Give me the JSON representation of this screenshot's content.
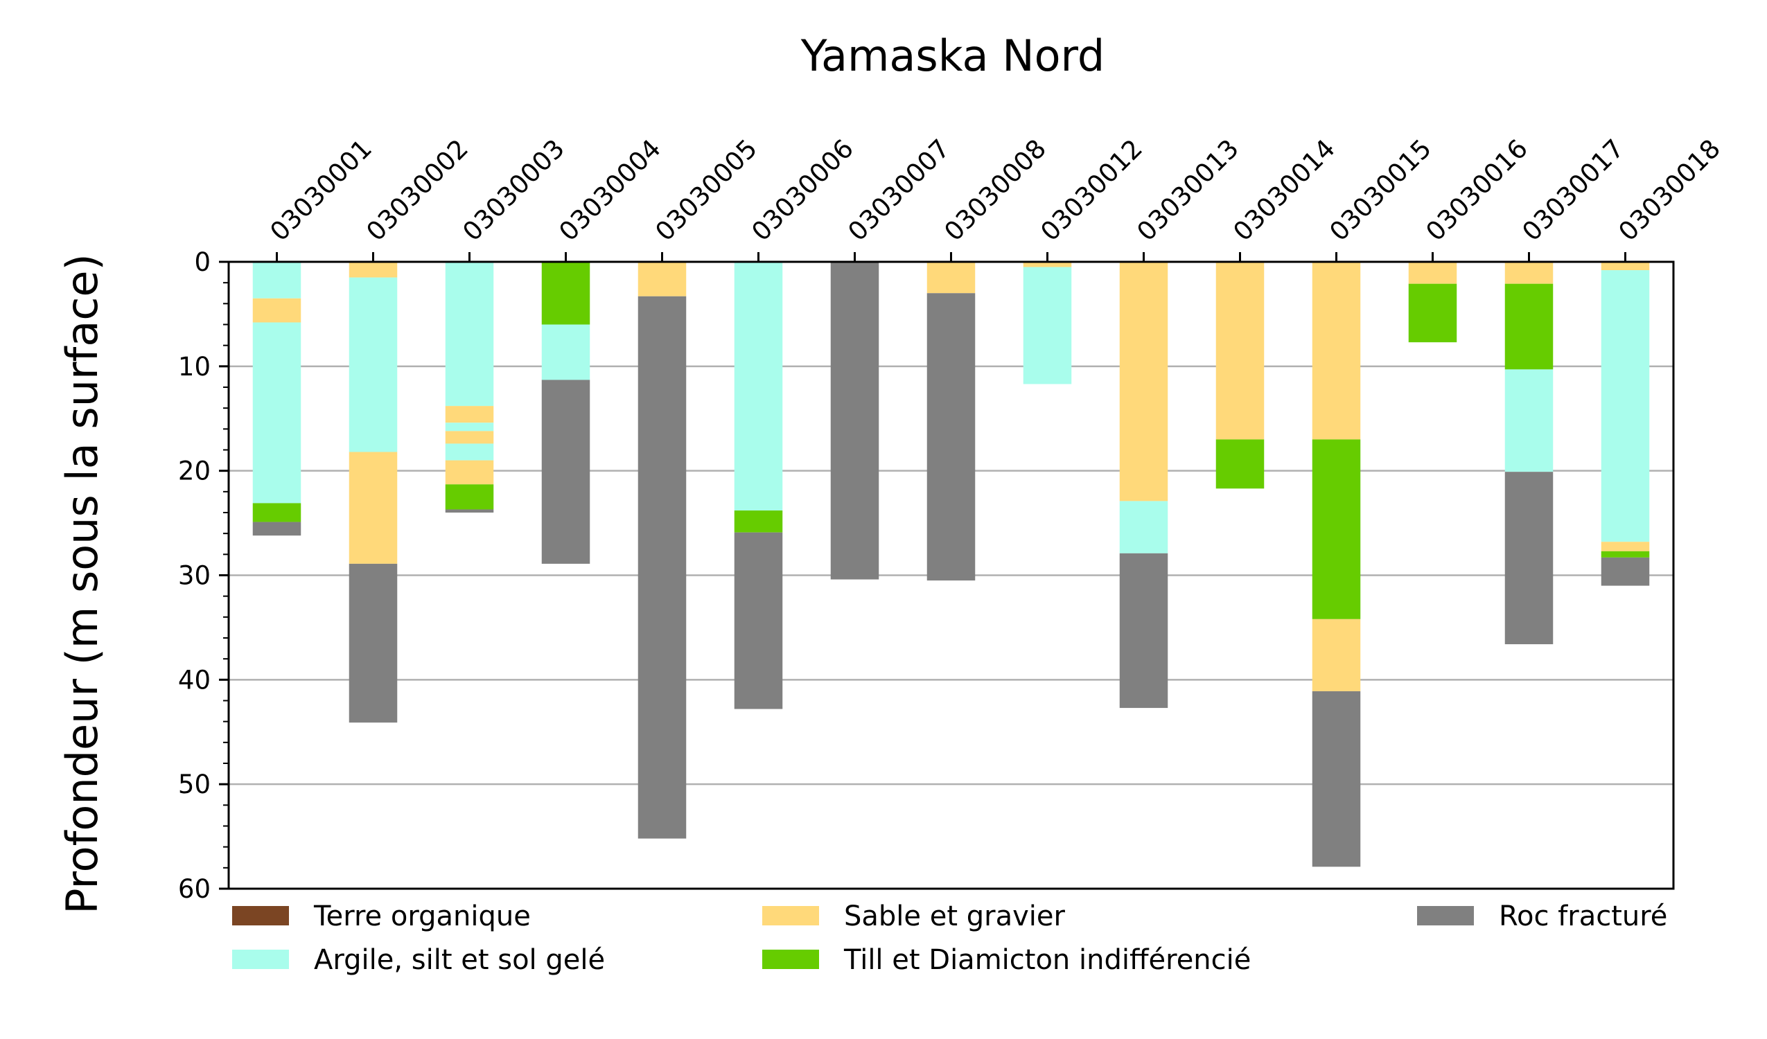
{
  "chart_data": {
    "type": "bar",
    "orientation": "vertical-stacked-depth",
    "title": "Yamaska Nord",
    "ylabel": "Profondeur (m sous la surface)",
    "xlabel": "",
    "ylim": [
      0,
      60
    ],
    "y_inverted": true,
    "yticks": [
      0,
      10,
      20,
      30,
      40,
      50,
      60
    ],
    "grid": "horizontal",
    "x_tick_position": "top",
    "legend_position": "bottom",
    "categories": [
      "03030001",
      "03030002",
      "03030003",
      "03030004",
      "03030005",
      "03030006",
      "03030007",
      "03030008",
      "03030012",
      "03030013",
      "03030014",
      "03030015",
      "03030016",
      "03030017",
      "03030018"
    ],
    "legend": [
      {
        "key": "organique",
        "label": "Terre organique",
        "color": "#7b4523"
      },
      {
        "key": "sable",
        "label": "Sable et gravier",
        "color": "#ffd97a"
      },
      {
        "key": "roc",
        "label": "Roc fracturé",
        "color": "#808080"
      },
      {
        "key": "argile",
        "label": "Argile, silt et sol gelé",
        "color": "#a9fdec"
      },
      {
        "key": "till",
        "label": "Till et Diamicton indifférencié",
        "color": "#66cc00"
      }
    ],
    "wells": [
      {
        "id": "03030001",
        "layers": [
          {
            "type": "argile",
            "top": 0,
            "bottom": 3.5
          },
          {
            "type": "sable",
            "top": 3.5,
            "bottom": 5.8
          },
          {
            "type": "argile",
            "top": 5.8,
            "bottom": 23.1
          },
          {
            "type": "till",
            "top": 23.1,
            "bottom": 24.9
          },
          {
            "type": "roc",
            "top": 24.9,
            "bottom": 26.2
          }
        ]
      },
      {
        "id": "03030002",
        "layers": [
          {
            "type": "sable",
            "top": 0,
            "bottom": 1.5
          },
          {
            "type": "argile",
            "top": 1.5,
            "bottom": 18.2
          },
          {
            "type": "sable",
            "top": 18.2,
            "bottom": 28.9
          },
          {
            "type": "roc",
            "top": 28.9,
            "bottom": 44.1
          }
        ]
      },
      {
        "id": "03030003",
        "layers": [
          {
            "type": "argile",
            "top": 0,
            "bottom": 13.8
          },
          {
            "type": "sable",
            "top": 13.8,
            "bottom": 15.4
          },
          {
            "type": "argile",
            "top": 15.4,
            "bottom": 16.2
          },
          {
            "type": "sable",
            "top": 16.2,
            "bottom": 17.4
          },
          {
            "type": "argile",
            "top": 17.4,
            "bottom": 19.0
          },
          {
            "type": "sable",
            "top": 19.0,
            "bottom": 21.3
          },
          {
            "type": "till",
            "top": 21.3,
            "bottom": 23.7
          },
          {
            "type": "roc",
            "top": 23.7,
            "bottom": 24.0
          }
        ]
      },
      {
        "id": "03030004",
        "layers": [
          {
            "type": "till",
            "top": 0,
            "bottom": 6.0
          },
          {
            "type": "argile",
            "top": 6.0,
            "bottom": 11.3
          },
          {
            "type": "roc",
            "top": 11.3,
            "bottom": 28.9
          }
        ]
      },
      {
        "id": "03030005",
        "layers": [
          {
            "type": "sable",
            "top": 0,
            "bottom": 3.3
          },
          {
            "type": "roc",
            "top": 3.3,
            "bottom": 55.2
          }
        ]
      },
      {
        "id": "03030006",
        "layers": [
          {
            "type": "argile",
            "top": 0,
            "bottom": 23.8
          },
          {
            "type": "till",
            "top": 23.8,
            "bottom": 25.9
          },
          {
            "type": "roc",
            "top": 25.9,
            "bottom": 42.8
          }
        ]
      },
      {
        "id": "03030007",
        "layers": [
          {
            "type": "roc",
            "top": 0,
            "bottom": 30.4
          }
        ]
      },
      {
        "id": "03030008",
        "layers": [
          {
            "type": "sable",
            "top": 0,
            "bottom": 3.0
          },
          {
            "type": "roc",
            "top": 3.0,
            "bottom": 30.5
          }
        ]
      },
      {
        "id": "03030012",
        "layers": [
          {
            "type": "sable",
            "top": 0,
            "bottom": 0.5
          },
          {
            "type": "argile",
            "top": 0.5,
            "bottom": 11.7
          }
        ]
      },
      {
        "id": "03030013",
        "layers": [
          {
            "type": "sable",
            "top": 0,
            "bottom": 22.9
          },
          {
            "type": "argile",
            "top": 22.9,
            "bottom": 27.9
          },
          {
            "type": "roc",
            "top": 27.9,
            "bottom": 42.7
          }
        ]
      },
      {
        "id": "03030014",
        "layers": [
          {
            "type": "sable",
            "top": 0,
            "bottom": 17.0
          },
          {
            "type": "till",
            "top": 17.0,
            "bottom": 21.7
          }
        ]
      },
      {
        "id": "03030015",
        "layers": [
          {
            "type": "sable",
            "top": 0,
            "bottom": 17.0
          },
          {
            "type": "till",
            "top": 17.0,
            "bottom": 34.2
          },
          {
            "type": "sable",
            "top": 34.2,
            "bottom": 41.1
          },
          {
            "type": "roc",
            "top": 41.1,
            "bottom": 57.9
          }
        ]
      },
      {
        "id": "03030016",
        "layers": [
          {
            "type": "sable",
            "top": 0,
            "bottom": 2.1
          },
          {
            "type": "till",
            "top": 2.1,
            "bottom": 7.7
          }
        ]
      },
      {
        "id": "03030017",
        "layers": [
          {
            "type": "sable",
            "top": 0,
            "bottom": 2.1
          },
          {
            "type": "till",
            "top": 2.1,
            "bottom": 10.3
          },
          {
            "type": "argile",
            "top": 10.3,
            "bottom": 20.1
          },
          {
            "type": "roc",
            "top": 20.1,
            "bottom": 36.6
          }
        ]
      },
      {
        "id": "03030018",
        "layers": [
          {
            "type": "sable",
            "top": 0,
            "bottom": 0.8
          },
          {
            "type": "argile",
            "top": 0.8,
            "bottom": 26.8
          },
          {
            "type": "sable",
            "top": 26.8,
            "bottom": 27.7
          },
          {
            "type": "till",
            "top": 27.7,
            "bottom": 28.3
          },
          {
            "type": "roc",
            "top": 28.3,
            "bottom": 31.0
          }
        ]
      }
    ]
  }
}
